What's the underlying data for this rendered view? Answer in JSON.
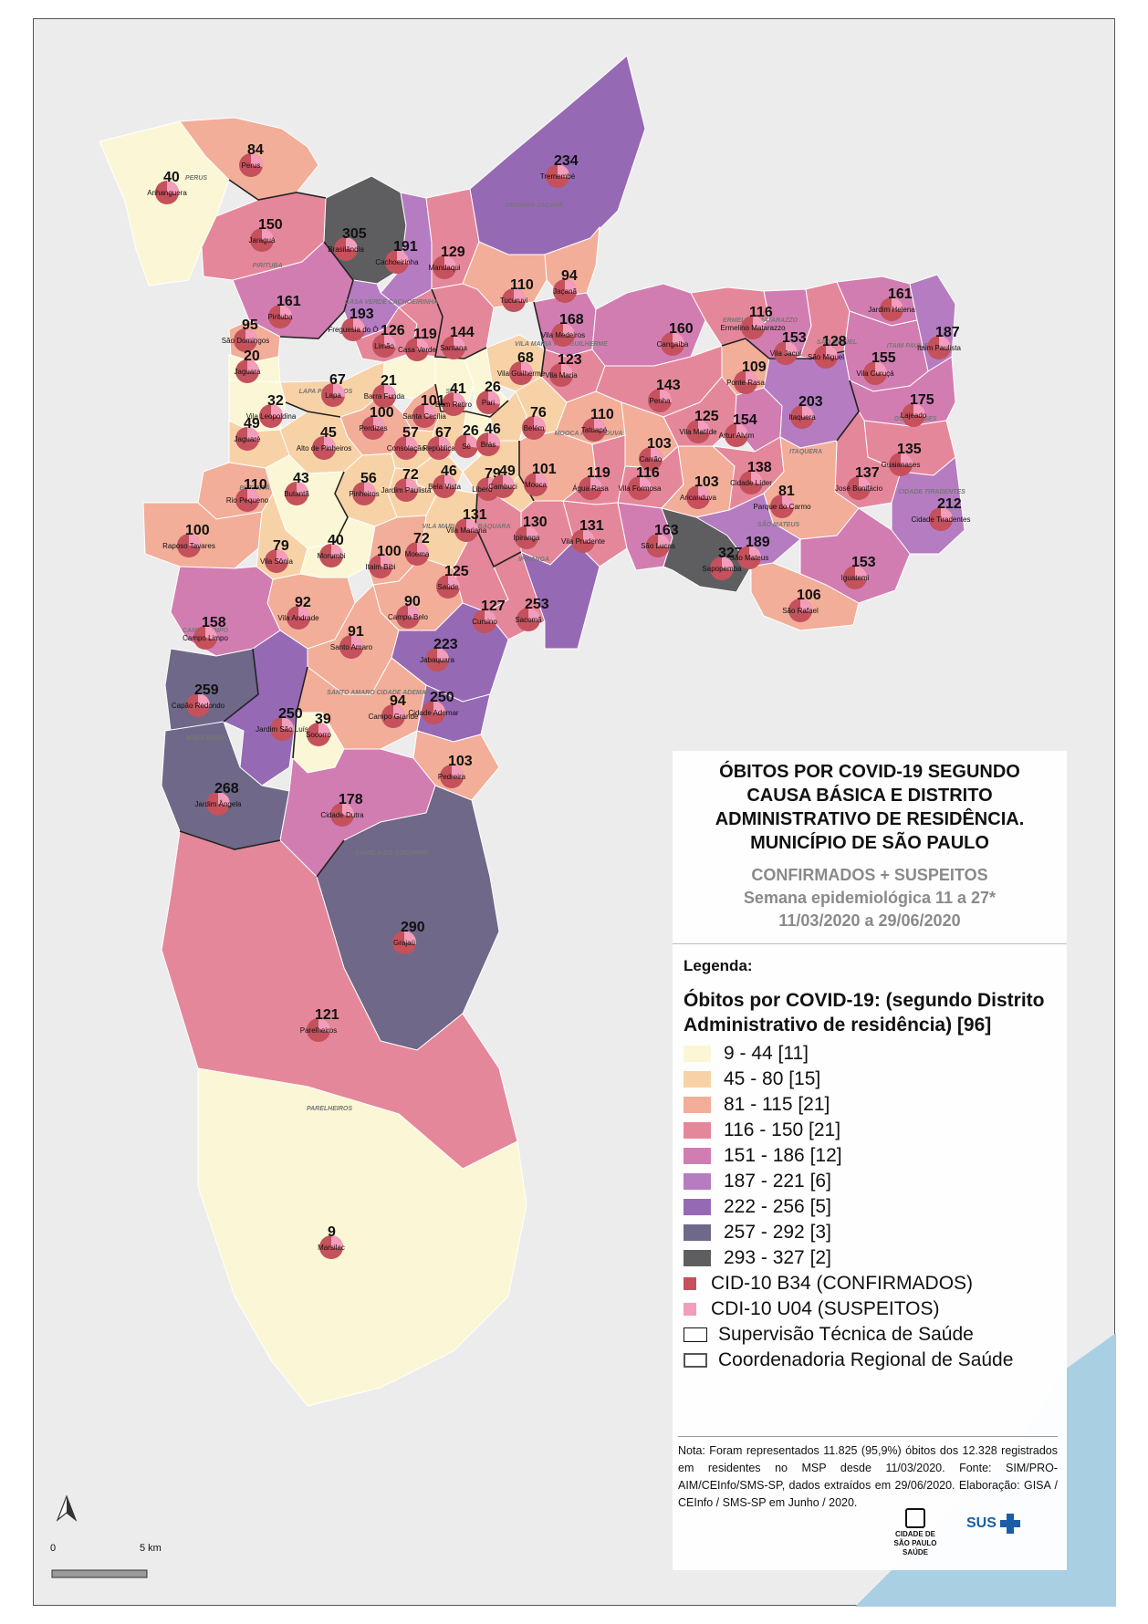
{
  "title": "ÓBITOS POR COVID-19 SEGUNDO CAUSA BÁSICA E DISTRITO ADMINISTRATIVO DE RESIDÊNCIA. MUNICÍPIO DE SÃO PAULO",
  "subtitle": {
    "line1": "CONFIRMADOS + SUSPEITOS",
    "line2": "Semana epidemiológica 11 a 27*",
    "line3": "11/03/2020 a 29/06/2020"
  },
  "legend": {
    "title": "Legenda:",
    "heading": "Óbitos por COVID-19: (segundo Distrito Administrativo de residência) [96]",
    "classes": [
      {
        "label": "9 - 44  [11]",
        "color": "#fbf7d6"
      },
      {
        "label": "45 - 80  [15]",
        "color": "#f8d2a7"
      },
      {
        "label": "81 - 115  [21]",
        "color": "#f2ae98"
      },
      {
        "label": "116 - 150  [21]",
        "color": "#e5879a"
      },
      {
        "label": "151 - 186  [12]",
        "color": "#d27db1"
      },
      {
        "label": "187 - 221  [6]",
        "color": "#b57cc1"
      },
      {
        "label": "222 - 256  [5]",
        "color": "#9669b5"
      },
      {
        "label": "257 - 292  [3]",
        "color": "#6f6889"
      },
      {
        "label": "293 - 327  [2]",
        "color": "#5e5e61"
      }
    ],
    "symbols": [
      {
        "label": "CID-10 B34 (CONFIRMADOS)",
        "color": "#c4515c"
      },
      {
        "label": "CDI-10 U04 (SUSPEITOS)",
        "color": "#f49cbb"
      }
    ],
    "boundaries": [
      {
        "label": "Supervisão Técnica de Saúde",
        "color": "#111111"
      },
      {
        "label": "Coordenadoria Regional de Saúde",
        "color": "#555555"
      }
    ]
  },
  "note": "Nota: Foram representados 11.825 (95,9%) óbitos dos 12.328 registrados em residentes no MSP desde 11/03/2020. Fonte: SIM/PRO-AIM/CEInfo/SMS-SP, dados extraídos em 29/06/2020. Elaboração: GISA / CEInfo / SMS-SP em Junho / 2020.",
  "logos": {
    "city": "CIDADE DE SÃO PAULO",
    "city_sub": "SAÚDE",
    "sus": "SUS"
  },
  "scale": {
    "start": "0",
    "end": "5 km"
  },
  "regions": [
    "PERUS",
    "PIRITUBA",
    "CASA VERDE CACHOEIRINHA",
    "SANTANA JAÇANÃ",
    "VILA MARIA VILA GUILHERME",
    "ERMELINO MATARAZZO",
    "SÃO MIGUEL",
    "ITAIM PAULISTA",
    "GUAIANASES",
    "CIDADE TIRADENTES",
    "ITAQUERA",
    "SÃO MATEUS",
    "MOOCA ARICANDUVA",
    "SÉ",
    "LAPA PINHEIROS",
    "BUTANTÃ",
    "VILA MARIANA JABAQUARA",
    "IPIRANGA",
    "CAMPO LIMPO",
    "SANTO AMARO CIDADE ADEMAR",
    "M'BOI MIRIM",
    "CAPELA DO SOCORRO",
    "PARELHEIROS"
  ],
  "districts": [
    {
      "name": "Anhanguera",
      "value": 40,
      "color": "#fbf7d6"
    },
    {
      "name": "Perus",
      "value": 84,
      "color": "#f2ae98"
    },
    {
      "name": "Jaraguá",
      "value": 150,
      "color": "#e5879a"
    },
    {
      "name": "Brasilândia",
      "value": 305,
      "color": "#5e5e61"
    },
    {
      "name": "Cachoeirinha",
      "value": 191,
      "color": "#b57cc1"
    },
    {
      "name": "Mandaqui",
      "value": 129,
      "color": "#e5879a"
    },
    {
      "name": "Tremembé",
      "value": 234,
      "color": "#9669b5"
    },
    {
      "name": "Jaçanã",
      "value": 94,
      "color": "#f2ae98"
    },
    {
      "name": "Tucuruvi",
      "value": 110,
      "color": "#f2ae98"
    },
    {
      "name": "Pirituba",
      "value": 161,
      "color": "#d27db1"
    },
    {
      "name": "Freguesia do Ó",
      "value": 193,
      "color": "#b57cc1"
    },
    {
      "name": "Limão",
      "value": 126,
      "color": "#e5879a"
    },
    {
      "name": "Casa Verde",
      "value": 119,
      "color": "#e5879a"
    },
    {
      "name": "Santana",
      "value": 144,
      "color": "#e5879a"
    },
    {
      "name": "Vila Medeiros",
      "value": 168,
      "color": "#d27db1"
    },
    {
      "name": "São Domingos",
      "value": 95,
      "color": "#f2ae98"
    },
    {
      "name": "Jaguara",
      "value": 20,
      "color": "#fbf7d6"
    },
    {
      "name": "Vila Guilherme",
      "value": 68,
      "color": "#f8d2a7"
    },
    {
      "name": "Vila Maria",
      "value": 123,
      "color": "#e5879a"
    },
    {
      "name": "Lapa",
      "value": 67,
      "color": "#f8d2a7"
    },
    {
      "name": "Barra Funda",
      "value": 21,
      "color": "#fbf7d6"
    },
    {
      "name": "Bom Retiro",
      "value": 41,
      "color": "#fbf7d6"
    },
    {
      "name": "Pari",
      "value": 26,
      "color": "#fbf7d6"
    },
    {
      "name": "Vila Leopoldina",
      "value": 32,
      "color": "#fbf7d6"
    },
    {
      "name": "Santa Cecília",
      "value": 101,
      "color": "#f2ae98"
    },
    {
      "name": "Perdizes",
      "value": 100,
      "color": "#f2ae98"
    },
    {
      "name": "Jaguaré",
      "value": 49,
      "color": "#f8d2a7"
    },
    {
      "name": "Alto de Pinheiros",
      "value": 45,
      "color": "#f8d2a7"
    },
    {
      "name": "Consolação",
      "value": 57,
      "color": "#f8d2a7"
    },
    {
      "name": "República",
      "value": 67,
      "color": "#f8d2a7"
    },
    {
      "name": "Sé",
      "value": 26,
      "color": "#fbf7d6"
    },
    {
      "name": "Brás",
      "value": 46,
      "color": "#f8d2a7"
    },
    {
      "name": "Belém",
      "value": 76,
      "color": "#f8d2a7"
    },
    {
      "name": "Tatuapé",
      "value": 110,
      "color": "#f2ae98"
    },
    {
      "name": "Cangaíba",
      "value": 160,
      "color": "#d27db1"
    },
    {
      "name": "Ermelino Matarazzo",
      "value": 116,
      "color": "#e5879a"
    },
    {
      "name": "Vila Jacuí",
      "value": 153,
      "color": "#d27db1"
    },
    {
      "name": "São Miguel",
      "value": 128,
      "color": "#e5879a"
    },
    {
      "name": "Jardim Helena",
      "value": 161,
      "color": "#d27db1"
    },
    {
      "name": "Itaim Paulista",
      "value": 187,
      "color": "#b57cc1"
    },
    {
      "name": "Vila Curuçá",
      "value": 155,
      "color": "#d27db1"
    },
    {
      "name": "Ponte Rasa",
      "value": 109,
      "color": "#f2ae98"
    },
    {
      "name": "Penha",
      "value": 143,
      "color": "#e5879a"
    },
    {
      "name": "Vila Matilde",
      "value": 125,
      "color": "#e5879a"
    },
    {
      "name": "Artur Alvim",
      "value": 154,
      "color": "#d27db1"
    },
    {
      "name": "Itaquera",
      "value": 203,
      "color": "#b57cc1"
    },
    {
      "name": "Lajeado",
      "value": 175,
      "color": "#d27db1"
    },
    {
      "name": "Guaianases",
      "value": 135,
      "color": "#e5879a"
    },
    {
      "name": "Carrão",
      "value": 103,
      "color": "#f2ae98"
    },
    {
      "name": "Mooca",
      "value": 101,
      "color": "#f2ae98"
    },
    {
      "name": "Água Rasa",
      "value": 119,
      "color": "#e5879a"
    },
    {
      "name": "Vila Formosa",
      "value": 116,
      "color": "#e5879a"
    },
    {
      "name": "Aricanduva",
      "value": 103,
      "color": "#f2ae98"
    },
    {
      "name": "Cidade Líder",
      "value": 138,
      "color": "#e5879a"
    },
    {
      "name": "José Bonifácio",
      "value": 137,
      "color": "#e5879a"
    },
    {
      "name": "Cidade Tiradentes",
      "value": 212,
      "color": "#b57cc1"
    },
    {
      "name": "Parque do Carmo",
      "value": 81,
      "color": "#f2ae98"
    },
    {
      "name": "Bela Vista",
      "value": 46,
      "color": "#f8d2a7"
    },
    {
      "name": "Liberdade",
      "value": 79,
      "color": "#f8d2a7"
    },
    {
      "name": "Cambuci",
      "value": 49,
      "color": "#f8d2a7"
    },
    {
      "name": "Jardim Paulista",
      "value": 72,
      "color": "#f8d2a7"
    },
    {
      "name": "Pinheiros",
      "value": 56,
      "color": "#f8d2a7"
    },
    {
      "name": "Butantã",
      "value": 43,
      "color": "#fbf7d6"
    },
    {
      "name": "Rio Pequeno",
      "value": 110,
      "color": "#f2ae98"
    },
    {
      "name": "Raposo Tavares",
      "value": 100,
      "color": "#f2ae98"
    },
    {
      "name": "Vila Sônia",
      "value": 79,
      "color": "#f8d2a7"
    },
    {
      "name": "Morumbi",
      "value": 40,
      "color": "#fbf7d6"
    },
    {
      "name": "Itaim Bibi",
      "value": 100,
      "color": "#f2ae98"
    },
    {
      "name": "Moema",
      "value": 72,
      "color": "#f8d2a7"
    },
    {
      "name": "Vila Mariana",
      "value": 131,
      "color": "#e5879a"
    },
    {
      "name": "Ipiranga",
      "value": 130,
      "color": "#e5879a"
    },
    {
      "name": "Vila Prudente",
      "value": 131,
      "color": "#e5879a"
    },
    {
      "name": "São Lucas",
      "value": 163,
      "color": "#d27db1"
    },
    {
      "name": "Sapopemba",
      "value": 327,
      "color": "#5e5e61"
    },
    {
      "name": "São Mateus",
      "value": 189,
      "color": "#b57cc1"
    },
    {
      "name": "Iguatemi",
      "value": 153,
      "color": "#d27db1"
    },
    {
      "name": "São Rafael",
      "value": 106,
      "color": "#f2ae98"
    },
    {
      "name": "Saúde",
      "value": 125,
      "color": "#e5879a"
    },
    {
      "name": "Cursino",
      "value": 127,
      "color": "#e5879a"
    },
    {
      "name": "Sacomã",
      "value": 253,
      "color": "#9669b5"
    },
    {
      "name": "Vila Andrade",
      "value": 92,
      "color": "#f2ae98"
    },
    {
      "name": "Campo Belo",
      "value": 90,
      "color": "#f2ae98"
    },
    {
      "name": "Campo Limpo",
      "value": 158,
      "color": "#d27db1"
    },
    {
      "name": "Santo Amaro",
      "value": 91,
      "color": "#f2ae98"
    },
    {
      "name": "Jabaquara",
      "value": 223,
      "color": "#9669b5"
    },
    {
      "name": "Capão Redondo",
      "value": 259,
      "color": "#6f6889"
    },
    {
      "name": "Jardim São Luís",
      "value": 250,
      "color": "#9669b5"
    },
    {
      "name": "Campo Grande",
      "value": 94,
      "color": "#f2ae98"
    },
    {
      "name": "Cidade Ademar",
      "value": 250,
      "color": "#9669b5"
    },
    {
      "name": "Socorro",
      "value": 39,
      "color": "#fbf7d6"
    },
    {
      "name": "Pedreira",
      "value": 103,
      "color": "#f2ae98"
    },
    {
      "name": "Jardim Ângela",
      "value": 268,
      "color": "#6f6889"
    },
    {
      "name": "Cidade Dutra",
      "value": 178,
      "color": "#d27db1"
    },
    {
      "name": "Grajaú",
      "value": 290,
      "color": "#6f6889"
    },
    {
      "name": "Parelheiros",
      "value": 121,
      "color": "#e5879a"
    },
    {
      "name": "Marsilac",
      "value": 9,
      "color": "#fbf7d6"
    }
  ]
}
